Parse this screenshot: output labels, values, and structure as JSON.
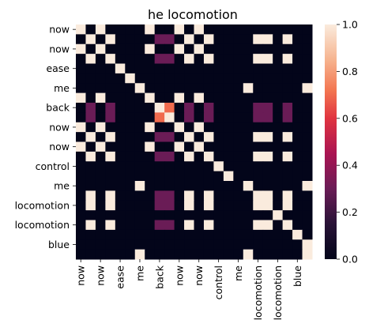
{
  "chart_data": {
    "type": "heatmap",
    "title": "he locomotion",
    "xlabel": "",
    "ylabel": "",
    "row_labels": [
      "now",
      "",
      "now",
      "",
      "ease",
      "",
      "me",
      "",
      "back",
      "",
      "now",
      "",
      "now",
      "",
      "control",
      "",
      "me",
      "",
      "locomotion",
      "",
      "locomotion",
      "",
      "blue",
      ""
    ],
    "col_labels": [
      "now",
      "",
      "now",
      "",
      "ease",
      "",
      "me",
      "",
      "back",
      "",
      "now",
      "",
      "now",
      "",
      "control",
      "",
      "me",
      "",
      "locomotion",
      "",
      "locomotion",
      "",
      "blue",
      ""
    ],
    "colorbar": {
      "min": 0.0,
      "max": 1.0,
      "ticks": [
        "0.0",
        "0.2",
        "0.4",
        "0.6",
        "0.8",
        "1.0"
      ]
    },
    "values": [
      [
        1,
        0,
        1,
        0,
        0,
        0,
        0,
        1,
        0,
        0,
        1,
        0,
        1,
        0,
        0,
        0,
        0,
        0,
        0,
        0,
        0,
        0,
        0,
        0
      ],
      [
        0,
        1,
        0,
        1,
        0,
        0,
        0,
        0,
        0.3,
        0.3,
        0,
        1,
        0,
        1,
        0,
        0,
        0,
        0,
        1,
        1,
        0,
        1,
        0,
        0
      ],
      [
        1,
        0,
        1,
        0,
        0,
        0,
        0,
        1,
        0,
        0,
        1,
        0,
        1,
        0,
        0,
        0,
        0,
        0,
        0,
        0,
        0,
        0,
        0,
        0
      ],
      [
        0,
        1,
        0,
        1,
        0,
        0,
        0,
        0,
        0.3,
        0.3,
        0,
        1,
        0,
        1,
        0,
        0,
        0,
        0,
        1,
        1,
        0,
        1,
        0,
        0
      ],
      [
        0,
        0,
        0,
        0,
        1,
        0,
        0,
        0,
        0,
        0,
        0,
        0,
        0,
        0,
        0,
        0,
        0,
        0,
        0,
        0,
        0,
        0,
        0,
        0
      ],
      [
        0,
        0,
        0,
        0,
        0,
        1,
        0,
        0,
        0,
        0,
        0,
        0,
        0,
        0,
        0,
        0,
        0,
        0,
        0,
        0,
        0,
        0,
        0,
        0
      ],
      [
        0,
        0,
        0,
        0,
        0,
        0,
        1,
        0,
        0,
        0,
        0,
        0,
        0,
        0,
        0,
        0,
        0,
        1,
        0,
        0,
        0,
        0,
        0,
        1
      ],
      [
        1,
        0,
        1,
        0,
        0,
        0,
        0,
        1,
        0,
        0,
        1,
        0,
        1,
        0,
        0,
        0,
        0,
        0,
        0,
        0,
        0,
        0,
        0,
        0
      ],
      [
        0,
        0.3,
        0,
        0.3,
        0,
        0,
        0,
        0,
        1,
        0.7,
        0,
        0.3,
        0,
        0.3,
        0,
        0,
        0,
        0,
        0.3,
        0.3,
        0,
        0.3,
        0,
        0
      ],
      [
        0,
        0.3,
        0,
        0.3,
        0,
        0,
        0,
        0,
        0.7,
        1,
        0,
        0.3,
        0,
        0.3,
        0,
        0,
        0,
        0,
        0.3,
        0.3,
        0,
        0.3,
        0,
        0
      ],
      [
        1,
        0,
        1,
        0,
        0,
        0,
        0,
        1,
        0,
        0,
        1,
        0,
        1,
        0,
        0,
        0,
        0,
        0,
        0,
        0,
        0,
        0,
        0,
        0
      ],
      [
        0,
        1,
        0,
        1,
        0,
        0,
        0,
        0,
        0.3,
        0.3,
        0,
        1,
        0,
        1,
        0,
        0,
        0,
        0,
        1,
        1,
        0,
        1,
        0,
        0
      ],
      [
        1,
        0,
        1,
        0,
        0,
        0,
        0,
        1,
        0,
        0,
        1,
        0,
        1,
        0,
        0,
        0,
        0,
        0,
        0,
        0,
        0,
        0,
        0,
        0
      ],
      [
        0,
        1,
        0,
        1,
        0,
        0,
        0,
        0,
        0.3,
        0.3,
        0,
        1,
        0,
        1,
        0,
        0,
        0,
        0,
        1,
        1,
        0,
        1,
        0,
        0
      ],
      [
        0,
        0,
        0,
        0,
        0,
        0,
        0,
        0,
        0,
        0,
        0,
        0,
        0,
        0,
        1,
        0,
        0,
        0,
        0,
        0,
        0,
        0,
        0,
        0
      ],
      [
        0,
        0,
        0,
        0,
        0,
        0,
        0,
        0,
        0,
        0,
        0,
        0,
        0,
        0,
        0,
        1,
        0,
        0,
        0,
        0,
        0,
        0,
        0,
        0
      ],
      [
        0,
        0,
        0,
        0,
        0,
        0,
        1,
        0,
        0,
        0,
        0,
        0,
        0,
        0,
        0,
        0,
        0,
        1,
        0,
        0,
        0,
        0,
        0,
        1
      ],
      [
        0,
        1,
        0,
        1,
        0,
        0,
        0,
        0,
        0.3,
        0.3,
        0,
        1,
        0,
        1,
        0,
        0,
        0,
        0,
        1,
        1,
        0,
        1,
        0,
        0
      ],
      [
        0,
        1,
        0,
        1,
        0,
        0,
        0,
        0,
        0.3,
        0.3,
        0,
        1,
        0,
        1,
        0,
        0,
        0,
        0,
        1,
        1,
        0,
        1,
        0,
        0
      ],
      [
        0,
        0,
        0,
        0,
        0,
        0,
        0,
        0,
        0,
        0,
        0,
        0,
        0,
        0,
        0,
        0,
        0,
        0,
        0,
        0,
        1,
        0,
        0,
        0
      ],
      [
        0,
        1,
        0,
        1,
        0,
        0,
        0,
        0,
        0.3,
        0.3,
        0,
        1,
        0,
        1,
        0,
        0,
        0,
        0,
        1,
        1,
        0,
        1,
        0,
        0
      ],
      [
        0,
        0,
        0,
        0,
        0,
        0,
        0,
        0,
        0,
        0,
        0,
        0,
        0,
        0,
        0,
        0,
        0,
        0,
        0,
        0,
        0,
        0,
        1,
        0
      ],
      [
        0,
        0,
        0,
        0,
        0,
        0,
        0,
        0,
        0,
        0,
        0,
        0,
        0,
        0,
        0,
        0,
        0,
        0,
        0,
        0,
        0,
        0,
        0,
        1
      ],
      [
        0,
        0,
        0,
        0,
        0,
        0,
        1,
        0,
        0,
        0,
        0,
        0,
        0,
        0,
        0,
        0,
        0,
        1,
        0,
        0,
        0,
        0,
        0,
        1
      ]
    ],
    "grid": false,
    "legend": "colorbar-right"
  }
}
